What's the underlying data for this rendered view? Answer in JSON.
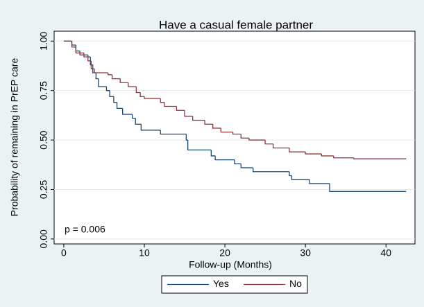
{
  "chart_data": {
    "type": "line",
    "drawstyle": "steps-post",
    "title": "Have a casual female partner",
    "x_label": "Follow-up (Months)",
    "y_label": "Probability of remaining in PrEP care",
    "annotation": "p = 0.006",
    "xlim": [
      -1.2,
      43.6
    ],
    "ylim": [
      -0.025,
      1.05
    ],
    "xticks": [
      0,
      10,
      20,
      30,
      40
    ],
    "yticks": [
      {
        "value": 0,
        "label": "0.00"
      },
      {
        "value": 0.25,
        "label": "0.25"
      },
      {
        "value": 0.5,
        "label": "0.50"
      },
      {
        "value": 0.75,
        "label": "0.75"
      },
      {
        "value": 1,
        "label": "1.00"
      }
    ],
    "grid": true,
    "legend_position": "bottom",
    "series": [
      {
        "name": "Yes",
        "color": "#1a476f",
        "x": [
          0,
          1,
          1.5,
          2,
          3,
          3.3,
          3.6,
          4,
          4.3,
          5.3,
          5.7,
          6.2,
          6.6,
          7.3,
          8.5,
          8.9,
          9.6,
          12,
          15.2,
          15.4,
          18.3,
          18.8,
          21.2,
          22,
          23.5,
          28,
          28.3,
          30.5,
          33,
          42.5
        ],
        "values": [
          1,
          0.98,
          0.95,
          0.93,
          0.92,
          0.88,
          0.84,
          0.81,
          0.77,
          0.75,
          0.72,
          0.69,
          0.66,
          0.63,
          0.61,
          0.58,
          0.55,
          0.53,
          0.5,
          0.45,
          0.42,
          0.4,
          0.38,
          0.36,
          0.34,
          0.32,
          0.3,
          0.28,
          0.24,
          0.24
        ]
      },
      {
        "name": "No",
        "color": "#90353b",
        "x": [
          0,
          1,
          1.5,
          2.5,
          3,
          3.4,
          3.8,
          5.5,
          6,
          7,
          8,
          9,
          9.5,
          10,
          12,
          12.5,
          14,
          15,
          16,
          17.5,
          18.5,
          19.5,
          21,
          22,
          23,
          25,
          26,
          28,
          30,
          32,
          33.5,
          36,
          42.5
        ],
        "values": [
          1,
          0.97,
          0.94,
          0.92,
          0.9,
          0.86,
          0.84,
          0.83,
          0.81,
          0.79,
          0.77,
          0.74,
          0.72,
          0.71,
          0.69,
          0.67,
          0.65,
          0.62,
          0.6,
          0.58,
          0.56,
          0.54,
          0.53,
          0.51,
          0.5,
          0.48,
          0.46,
          0.44,
          0.43,
          0.42,
          0.41,
          0.405,
          0.405
        ]
      }
    ]
  }
}
